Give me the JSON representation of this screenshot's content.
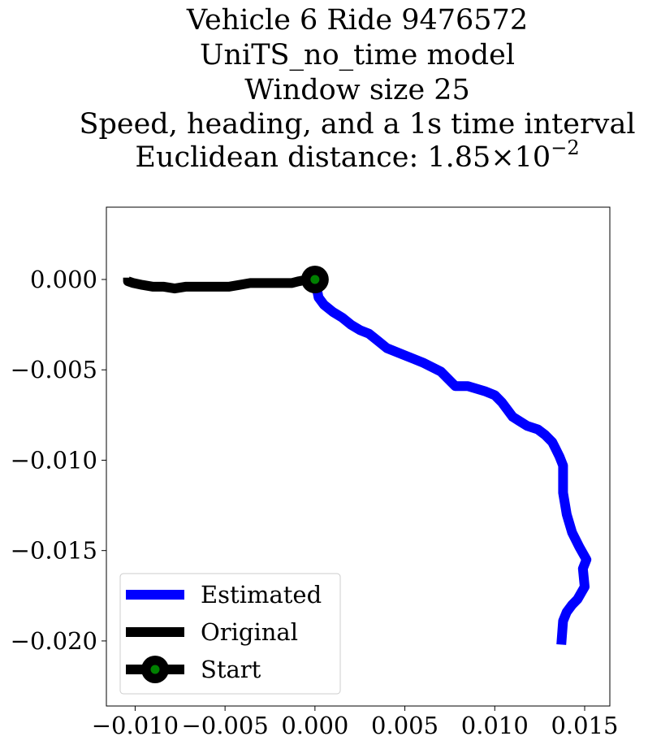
{
  "chart_data": {
    "type": "line",
    "title_lines": [
      "Vehicle 6 Ride 9476572",
      "UniTS_no_time model",
      "Window size 25",
      "Speed, heading, and a 1s time interval"
    ],
    "title_metric": {
      "prefix": "Euclidean distance: ",
      "mantissa": "1.85",
      "times": "×",
      "base": "10",
      "exponent": "−2"
    },
    "xlabel": "",
    "ylabel": "",
    "xlim": [
      -0.0116,
      0.0164
    ],
    "ylim": [
      -0.0236,
      0.004
    ],
    "x_ticks": [
      {
        "value": -0.01,
        "label": "−0.010"
      },
      {
        "value": -0.005,
        "label": "−0.005"
      },
      {
        "value": 0.0,
        "label": "0.000"
      },
      {
        "value": 0.005,
        "label": "0.005"
      },
      {
        "value": 0.01,
        "label": "0.010"
      },
      {
        "value": 0.015,
        "label": "0.015"
      }
    ],
    "y_ticks": [
      {
        "value": 0.0,
        "label": "0.000"
      },
      {
        "value": -0.005,
        "label": "−0.005"
      },
      {
        "value": -0.01,
        "label": "−0.010"
      },
      {
        "value": -0.015,
        "label": "−0.015"
      },
      {
        "value": -0.02,
        "label": "−0.020"
      }
    ],
    "grid": false,
    "legend_position": "lower-left",
    "series": [
      {
        "name": "Estimated",
        "color": "#0000ff",
        "x": [
          0.0,
          0.0002,
          0.0005,
          0.001,
          0.0015,
          0.002,
          0.0025,
          0.003,
          0.0035,
          0.004,
          0.005,
          0.006,
          0.007,
          0.0078,
          0.0085,
          0.0095,
          0.01,
          0.0104,
          0.011,
          0.0118,
          0.0124,
          0.0128,
          0.0132,
          0.0134,
          0.0136,
          0.0138,
          0.0138,
          0.014,
          0.0143,
          0.0147,
          0.0151,
          0.0149,
          0.015,
          0.0146,
          0.0143,
          0.014,
          0.0138,
          0.0137
        ],
        "y": [
          0.0,
          -0.001,
          -0.0014,
          -0.0018,
          -0.0021,
          -0.0025,
          -0.0028,
          -0.003,
          -0.0034,
          -0.0038,
          -0.0042,
          -0.0046,
          -0.0051,
          -0.0059,
          -0.0059,
          -0.0062,
          -0.0064,
          -0.0068,
          -0.0076,
          -0.0081,
          -0.0083,
          -0.0086,
          -0.009,
          -0.0094,
          -0.0098,
          -0.0103,
          -0.0118,
          -0.013,
          -0.014,
          -0.0148,
          -0.0155,
          -0.016,
          -0.017,
          -0.0177,
          -0.018,
          -0.0184,
          -0.0189,
          -0.0202
        ]
      },
      {
        "name": "Original",
        "color": "#000000",
        "x": [
          0.0,
          -0.0004,
          -0.0009,
          -0.0013,
          -0.0018,
          -0.0024,
          -0.003,
          -0.0036,
          -0.0042,
          -0.0048,
          -0.0054,
          -0.006,
          -0.0066,
          -0.0072,
          -0.0078,
          -0.0084,
          -0.009,
          -0.0096,
          -0.0101,
          -0.0104,
          -0.0104
        ],
        "y": [
          0.0,
          0.0,
          -0.0001,
          -0.0002,
          -0.0002,
          -0.0002,
          -0.0002,
          -0.0002,
          -0.0003,
          -0.0004,
          -0.0004,
          -0.0004,
          -0.0004,
          -0.0004,
          -0.0005,
          -0.0004,
          -0.0004,
          -0.0003,
          -0.0002,
          -0.0001,
          0.0001
        ]
      }
    ],
    "start_marker": {
      "name": "Start",
      "x": 0.0,
      "y": 0.0,
      "outer_color": "#000000",
      "inner_color": "#008000"
    }
  }
}
